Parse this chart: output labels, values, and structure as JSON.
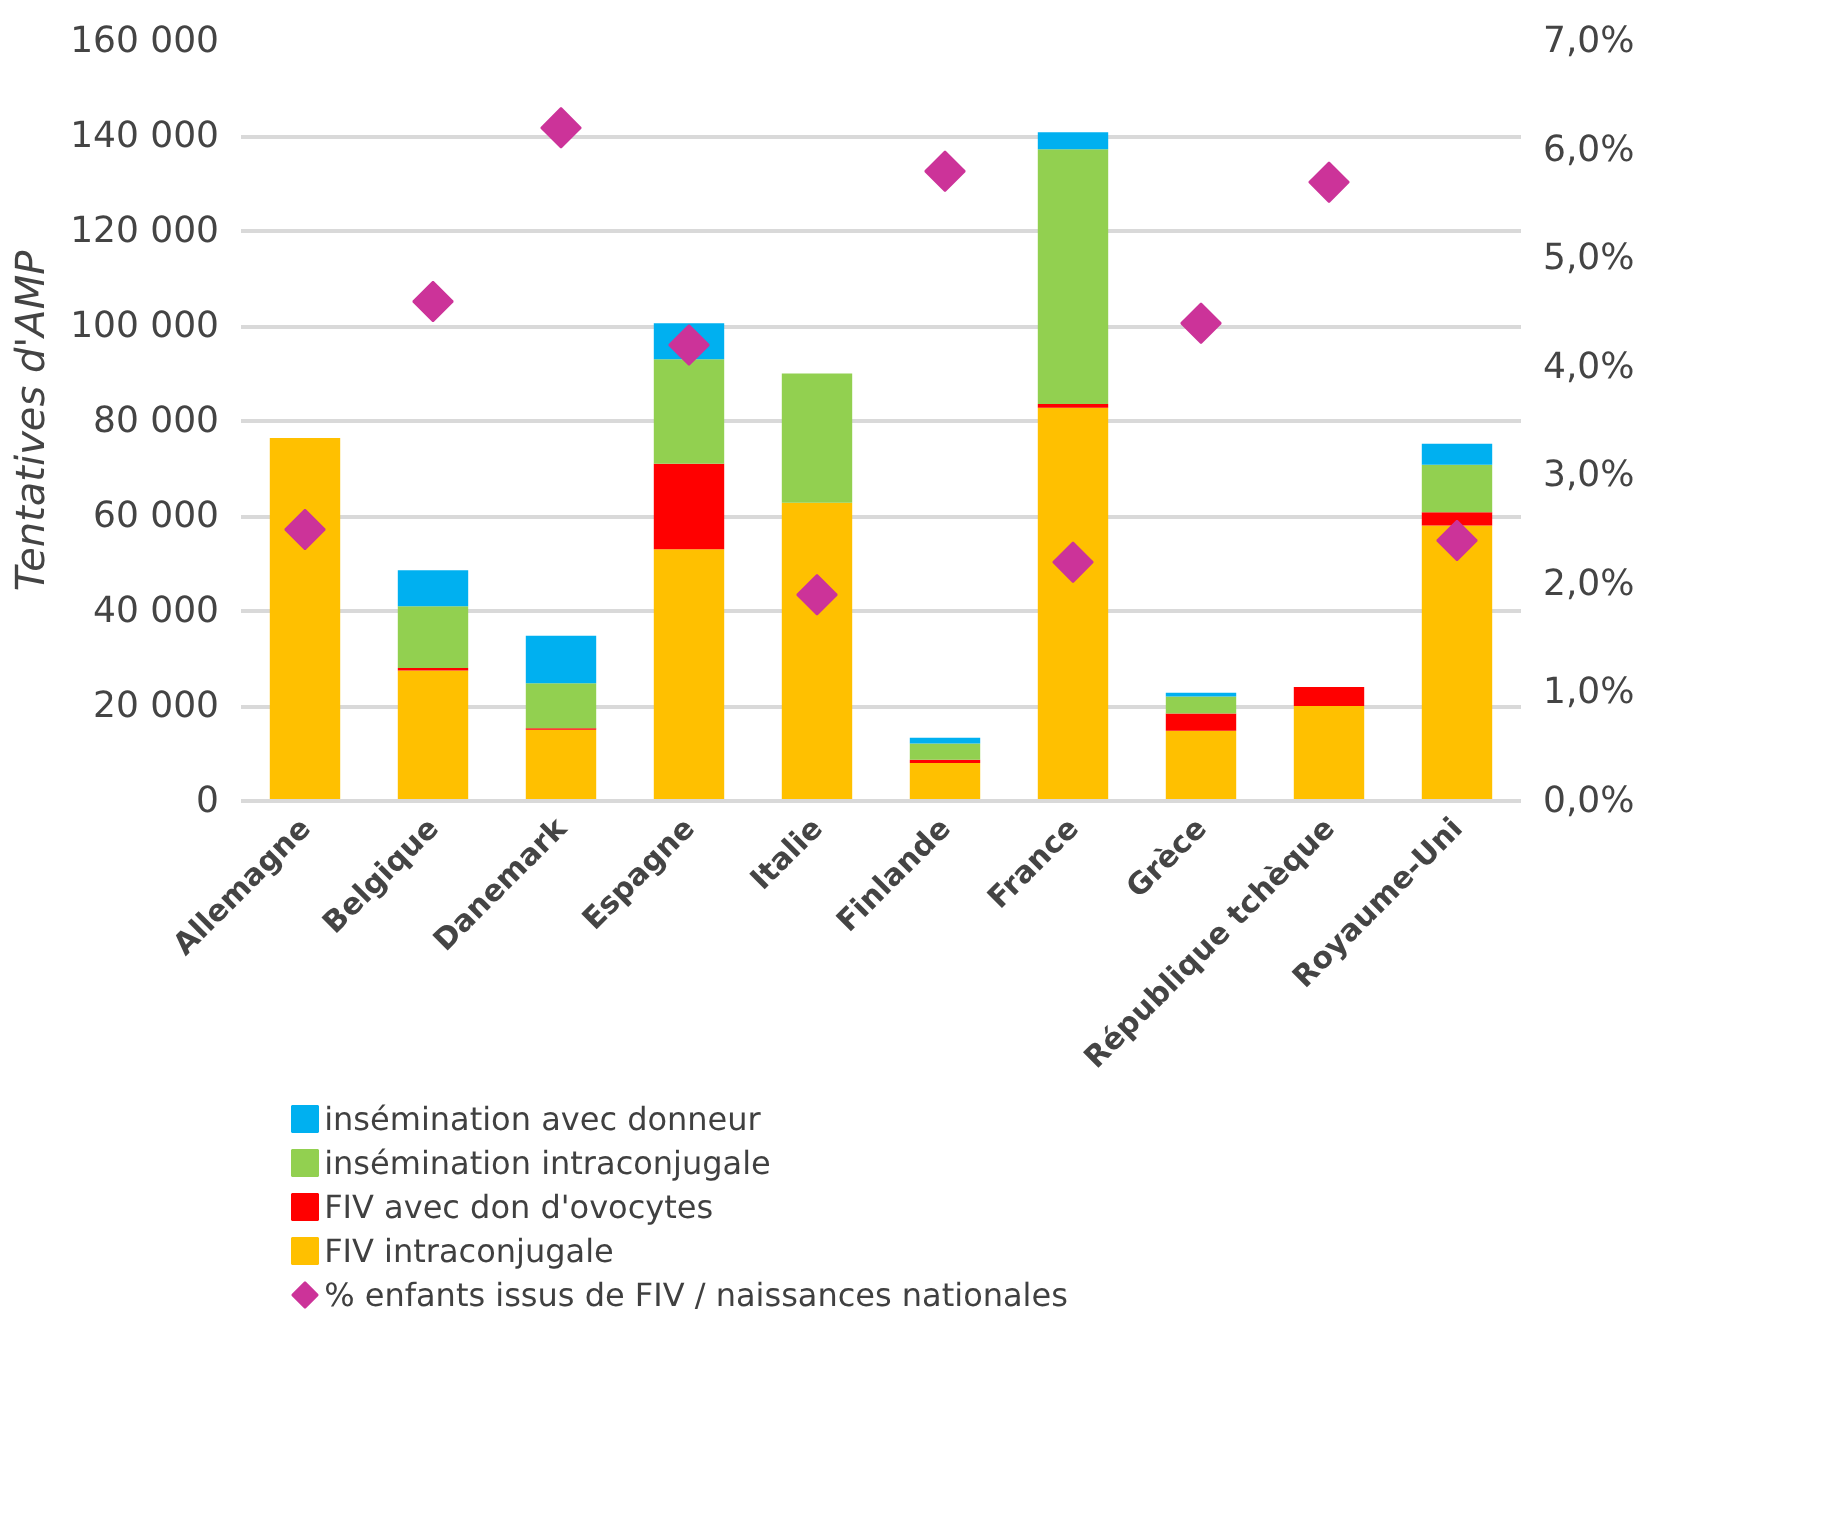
{
  "chart_data": {
    "type": "bar",
    "stacked": true,
    "ylabel": "Tentatives d'AMP",
    "categories": [
      "Allemagne",
      "Belgique",
      "Danemark",
      "Espagne",
      "Italie",
      "Finlande",
      "France",
      "Grèce",
      "République tchèque",
      "Royaume-Uni"
    ],
    "series": [
      {
        "name": "FIV intraconjugale",
        "color": "#ffc000",
        "values": [
          76400,
          27500,
          15000,
          53000,
          62800,
          8000,
          82800,
          14800,
          20000,
          58000
        ]
      },
      {
        "name": "FIV avec don d'ovocytes",
        "color": "#ff0000",
        "values": [
          0,
          500,
          300,
          18000,
          0,
          700,
          800,
          3600,
          4000,
          2800
        ]
      },
      {
        "name": "insémination intraconjugale",
        "color": "#92d050",
        "values": [
          0,
          13000,
          9500,
          22000,
          27200,
          3400,
          53600,
          3600,
          0,
          10000
        ]
      },
      {
        "name": "insémination avec donneur",
        "color": "#00b0f0",
        "values": [
          0,
          7600,
          10000,
          7600,
          0,
          1200,
          3600,
          800,
          0,
          4400
        ]
      },
      {
        "name": "% enfants issus de FIV / naissances nationales",
        "color": "#cc3399",
        "type": "scatter",
        "axis": "y2",
        "marker": "diamond",
        "values": [
          2.5,
          4.6,
          6.2,
          4.2,
          1.9,
          5.8,
          2.2,
          4.4,
          5.7,
          2.4
        ]
      }
    ],
    "ylim": [
      0,
      160000
    ],
    "yticks": [
      0,
      {
        "value": 20000,
        "label": "20 000"
      },
      {
        "value": 40000,
        "label": "40 000"
      },
      {
        "value": 60000,
        "label": "60 000"
      },
      {
        "value": 80000,
        "label": "80 000"
      },
      {
        "value": 100000,
        "label": "100 000"
      },
      {
        "value": 120000,
        "label": "120 000"
      },
      {
        "value": 140000,
        "label": "140 000"
      },
      {
        "value": 160000,
        "label": "160 000"
      }
    ],
    "y2lim": [
      0,
      7
    ],
    "y2ticks": [
      {
        "value": 0,
        "label": "0,0%"
      },
      {
        "value": 1,
        "label": "1,0%"
      },
      {
        "value": 2,
        "label": "2,0%"
      },
      {
        "value": 3,
        "label": "3,0%"
      },
      {
        "value": 4,
        "label": "4,0%"
      },
      {
        "value": 5,
        "label": "5,0%"
      },
      {
        "value": 6,
        "label": "6,0%"
      },
      {
        "value": 7,
        "label": "7,0%"
      }
    ],
    "grid": "y",
    "legend": "bottom left"
  }
}
